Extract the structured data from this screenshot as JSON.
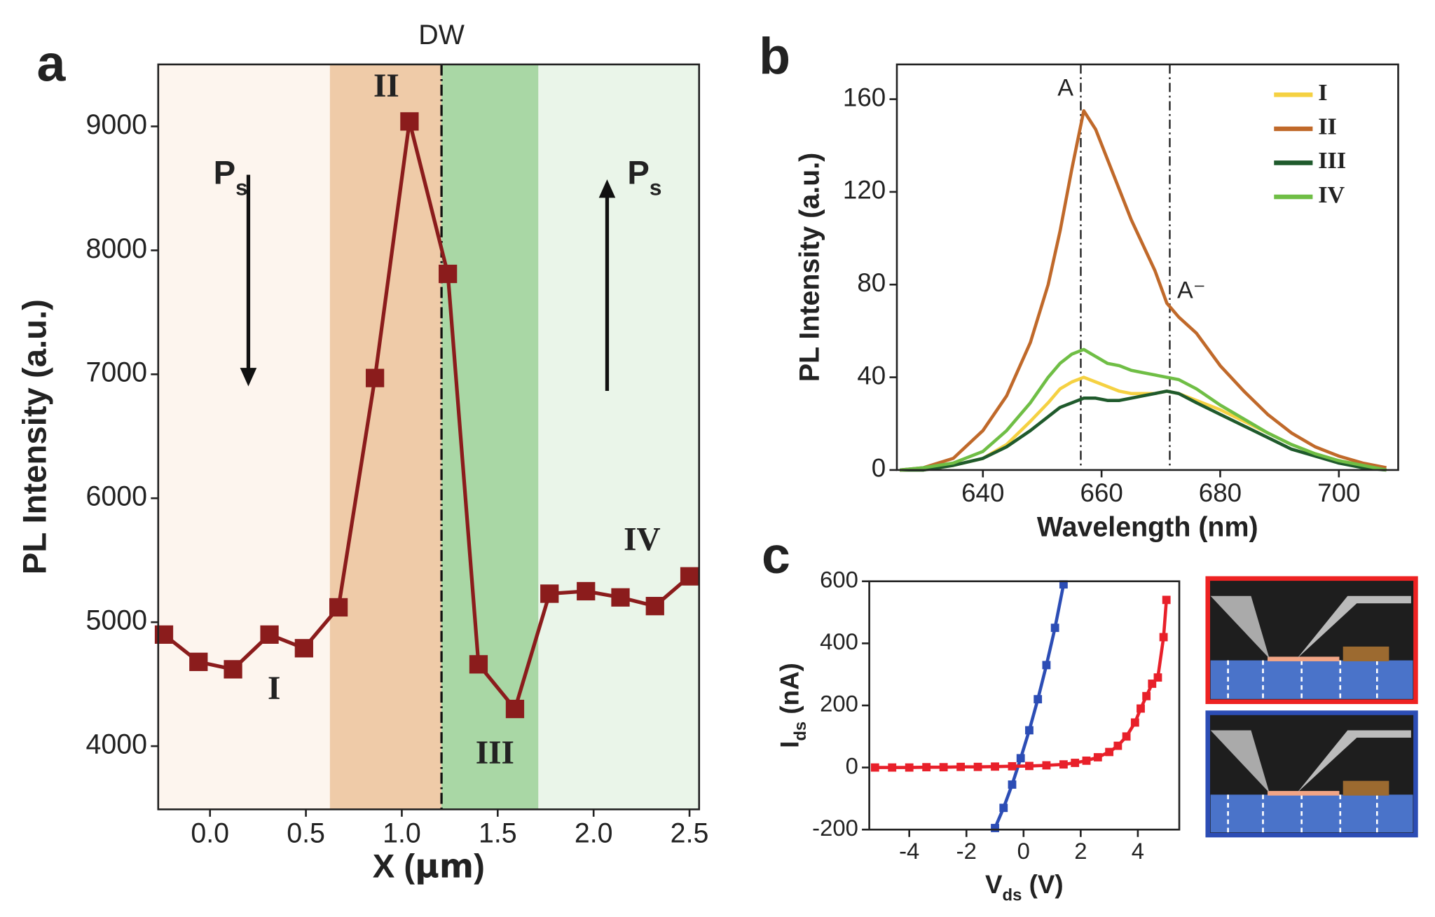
{
  "chart_data": [
    {
      "type": "line",
      "panel": "a",
      "markers": true,
      "color": "#8b1c1c",
      "xlabel": {
        "main": "X (",
        "unit": "μm",
        "end": ")"
      },
      "ylabel": "PL Intensity (a.u.)",
      "x": [
        -0.24,
        -0.06,
        0.12,
        0.31,
        0.49,
        0.67,
        0.86,
        1.04,
        1.24,
        1.4,
        1.59,
        1.77,
        1.96,
        2.14,
        2.32,
        2.5
      ],
      "values": [
        4900,
        4680,
        4620,
        4900,
        4790,
        5120,
        6970,
        9040,
        7810,
        4660,
        4300,
        5230,
        5250,
        5200,
        5130,
        5370
      ],
      "xlim": [
        -0.27,
        2.55
      ],
      "ylim": [
        3490,
        9500
      ],
      "xticks": [
        {
          "value": 0,
          "label": "0.0"
        },
        0.5,
        {
          "value": 1,
          "label": "1.0"
        },
        1.5,
        {
          "value": 2,
          "label": "2.0"
        },
        2.5
      ],
      "yticks": [
        4000,
        5000,
        6000,
        7000,
        8000,
        9000
      ],
      "regions": [
        {
          "name": "I",
          "range": [
            -0.27,
            0.625
          ],
          "color": "#fdf5ee"
        },
        {
          "name": "II",
          "range": [
            0.625,
            1.207
          ],
          "color": "#efcba8"
        },
        {
          "name": "III",
          "range": [
            1.207,
            1.712
          ],
          "color": "#a9d7a5"
        },
        {
          "name": "IV",
          "range": [
            1.712,
            2.55
          ],
          "color": "#eaf5e9"
        }
      ],
      "domain_wall": {
        "label": "DW",
        "x": 1.207
      },
      "polarization": {
        "symbol": "P",
        "subscript": "s"
      }
    },
    {
      "type": "line",
      "panel": "b",
      "markers": false,
      "xlabel": "Wavelength (nm)",
      "ylabel": "PL Intensity (a.u.)",
      "x": [
        626,
        630,
        635,
        640,
        644,
        648,
        651,
        653,
        655,
        657,
        659,
        661,
        663,
        665,
        667,
        669,
        671,
        673,
        676,
        680,
        684,
        688,
        692,
        696,
        700,
        704,
        708
      ],
      "series": [
        {
          "name": "I",
          "color": "#f5d142",
          "values": [
            0,
            0,
            2,
            5,
            11,
            21,
            29,
            35,
            38,
            40,
            38,
            36,
            34,
            33,
            33,
            33,
            34,
            33,
            30,
            26,
            21,
            16,
            11,
            7,
            4,
            2,
            0
          ]
        },
        {
          "name": "II",
          "color": "#c0692a",
          "values": [
            0,
            1,
            5,
            17,
            32,
            55,
            80,
            103,
            130,
            155,
            147,
            134,
            121,
            108,
            97,
            86,
            72,
            66,
            59,
            45,
            34,
            24,
            16,
            10,
            6,
            3,
            1
          ]
        },
        {
          "name": "III",
          "color": "#1f5a2c",
          "values": [
            0,
            0,
            2,
            5,
            10,
            17,
            23,
            27,
            29,
            31,
            31,
            30,
            30,
            31,
            32,
            33,
            34,
            33,
            29,
            24,
            19,
            14,
            9,
            6,
            3,
            1,
            0
          ]
        },
        {
          "name": "IV",
          "color": "#6fbe45",
          "values": [
            0,
            1,
            3,
            8,
            17,
            29,
            40,
            46,
            50,
            52,
            49,
            46,
            45,
            43,
            42,
            41,
            40,
            39,
            35,
            28,
            22,
            16,
            11,
            7,
            4,
            2,
            0
          ]
        }
      ],
      "xlim": [
        625.5,
        710
      ],
      "ylim": [
        0,
        175
      ],
      "xticks": [
        640,
        660,
        680,
        700
      ],
      "yticks": [
        0,
        40,
        80,
        120,
        160
      ],
      "peaks": [
        {
          "label": "A",
          "x": 656.5
        },
        {
          "label": "A⁻",
          "x": 671.5
        }
      ],
      "legend": "upper-right"
    },
    {
      "type": "line",
      "panel": "c",
      "markers": true,
      "xlabel": {
        "main": "V",
        "sub": "ds",
        "end": " (V)"
      },
      "ylabel": {
        "main": "I",
        "sub": "ds",
        "end": " (nA)"
      },
      "series": [
        {
          "color": "#2c4db5",
          "x": [
            -1.0,
            -0.7,
            -0.4,
            -0.1,
            0.2,
            0.5,
            0.8,
            1.1,
            1.4
          ],
          "values": [
            -195,
            -130,
            -55,
            30,
            120,
            220,
            330,
            450,
            590
          ]
        },
        {
          "color": "#e8202a",
          "x": [
            -5.2,
            -4.6,
            -4,
            -3.4,
            -2.8,
            -2.2,
            -1.6,
            -1,
            -0.4,
            0.2,
            0.8,
            1.4,
            1.8,
            2.2,
            2.6,
            3.0,
            3.3,
            3.6,
            3.9,
            4.1,
            4.3,
            4.5,
            4.7,
            4.9,
            5.0
          ],
          "values": [
            0,
            0,
            0,
            1,
            1,
            2,
            2,
            3,
            4,
            5,
            7,
            10,
            15,
            22,
            33,
            50,
            70,
            100,
            145,
            190,
            230,
            270,
            290,
            420,
            540
          ]
        }
      ],
      "xlim": [
        -5.4,
        5.45
      ],
      "ylim": [
        -200,
        600
      ],
      "xticks": [
        -4,
        -2,
        0,
        2,
        4
      ],
      "yticks": [
        -200,
        0,
        200,
        400,
        600
      ]
    }
  ]
}
